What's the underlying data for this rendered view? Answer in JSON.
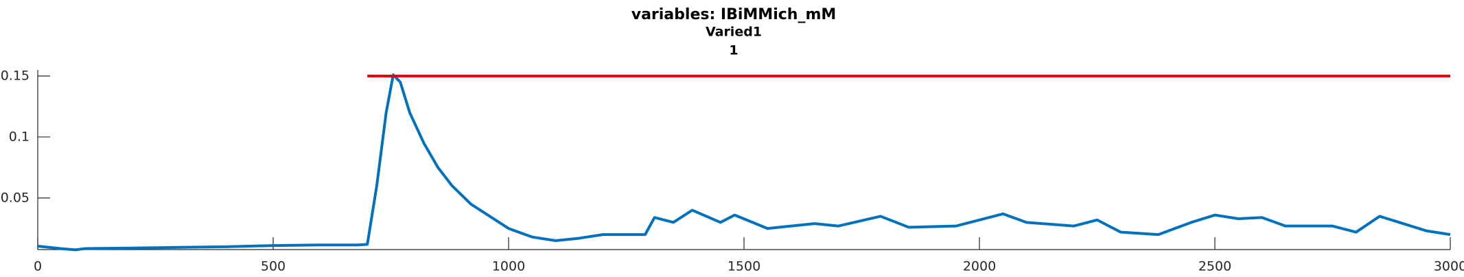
{
  "chart_data": {
    "type": "line",
    "title": "variables: IBiMMich_mM",
    "subtitle": "Varied1",
    "subtitle2": "1",
    "xlim": [
      0,
      3000
    ],
    "xticks": [
      0,
      500,
      1000,
      1500,
      2000,
      2500,
      3000
    ],
    "ylim": [
      0.0077,
      0.155
    ],
    "yticks": [
      0.05,
      0.1,
      0.15
    ],
    "series": [
      {
        "color": "#0072bd",
        "x": [
          0,
          50,
          80,
          100,
          200,
          300,
          400,
          500,
          600,
          680,
          700,
          720,
          740,
          755,
          770,
          790,
          820,
          850,
          880,
          920,
          960,
          1000,
          1050,
          1100,
          1150,
          1200,
          1250,
          1290,
          1310,
          1350,
          1390,
          1450,
          1480,
          1550,
          1600,
          1650,
          1700,
          1790,
          1850,
          1950,
          2050,
          2100,
          2200,
          2250,
          2300,
          2380,
          2450,
          2500,
          2550,
          2600,
          2650,
          2750,
          2800,
          2850,
          2950,
          3000
        ],
        "values": [
          0.0105,
          0.0085,
          0.0075,
          0.0085,
          0.009,
          0.0095,
          0.01,
          0.011,
          0.0115,
          0.0115,
          0.012,
          0.06,
          0.12,
          0.151,
          0.145,
          0.12,
          0.095,
          0.075,
          0.06,
          0.045,
          0.035,
          0.025,
          0.018,
          0.015,
          0.017,
          0.02,
          0.02,
          0.02,
          0.034,
          0.03,
          0.04,
          0.03,
          0.036,
          0.025,
          0.027,
          0.029,
          0.027,
          0.035,
          0.026,
          0.027,
          0.037,
          0.03,
          0.027,
          0.032,
          0.022,
          0.02,
          0.03,
          0.036,
          0.033,
          0.034,
          0.027,
          0.027,
          0.022,
          0.035,
          0.023,
          0.02
        ]
      },
      {
        "color": "#e3000f",
        "x": [
          700,
          3000
        ],
        "values": [
          0.15,
          0.15
        ]
      }
    ]
  }
}
